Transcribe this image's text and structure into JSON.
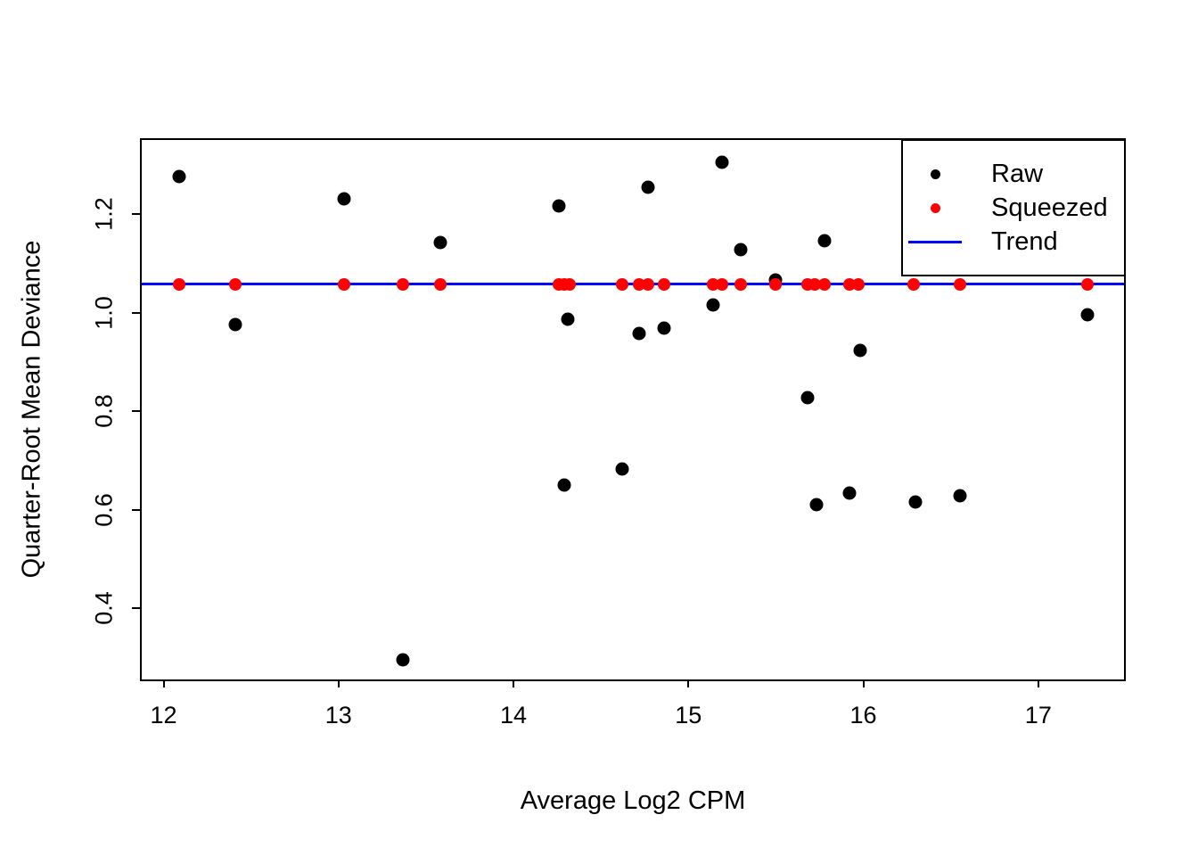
{
  "chart_data": {
    "type": "scatter",
    "title": "",
    "xlabel": "Average Log2 CPM",
    "ylabel": "Quarter-Root Mean Deviance",
    "xlim": [
      11.875,
      17.49
    ],
    "ylim": [
      0.256,
      1.351
    ],
    "x_ticks": [
      12,
      13,
      14,
      15,
      16,
      17
    ],
    "x_tick_labels": [
      "12",
      "13",
      "14",
      "15",
      "16",
      "17"
    ],
    "y_ticks": [
      0.4,
      0.6,
      0.8,
      1.0,
      1.2
    ],
    "y_tick_labels": [
      "0.4",
      "0.6",
      "0.8",
      "1.0",
      "1.2"
    ],
    "grid": false,
    "legend_position": "topright",
    "series": [
      {
        "name": "Raw",
        "type": "points",
        "color": "#000000",
        "marker_size": 15,
        "points": [
          [
            12.09,
            1.277
          ],
          [
            12.41,
            0.977
          ],
          [
            13.03,
            1.232
          ],
          [
            13.37,
            0.296
          ],
          [
            13.58,
            1.142
          ],
          [
            14.26,
            1.217
          ],
          [
            14.29,
            0.65
          ],
          [
            14.31,
            0.988
          ],
          [
            14.62,
            0.683
          ],
          [
            14.72,
            0.958
          ],
          [
            14.77,
            1.255
          ],
          [
            14.86,
            0.969
          ],
          [
            15.14,
            1.017
          ],
          [
            15.19,
            1.305
          ],
          [
            15.3,
            1.128
          ],
          [
            15.5,
            1.066
          ],
          [
            15.68,
            0.828
          ],
          [
            15.73,
            0.61
          ],
          [
            15.78,
            1.146
          ],
          [
            15.92,
            0.634
          ],
          [
            15.98,
            0.923
          ],
          [
            16.3,
            0.616
          ],
          [
            16.55,
            0.629
          ],
          [
            17.28,
            0.997
          ]
        ]
      },
      {
        "name": "Squeezed",
        "type": "points",
        "color": "#ff0000",
        "marker_size": 14,
        "points": [
          [
            12.09,
            1.058
          ],
          [
            12.41,
            1.058
          ],
          [
            13.03,
            1.058
          ],
          [
            13.37,
            1.058
          ],
          [
            13.58,
            1.058
          ],
          [
            14.26,
            1.058
          ],
          [
            14.29,
            1.058
          ],
          [
            14.32,
            1.058
          ],
          [
            14.62,
            1.058
          ],
          [
            14.72,
            1.058
          ],
          [
            14.77,
            1.058
          ],
          [
            14.86,
            1.058
          ],
          [
            15.14,
            1.058
          ],
          [
            15.19,
            1.058
          ],
          [
            15.3,
            1.058
          ],
          [
            15.5,
            1.058
          ],
          [
            15.68,
            1.058
          ],
          [
            15.72,
            1.058
          ],
          [
            15.78,
            1.058
          ],
          [
            15.92,
            1.058
          ],
          [
            15.97,
            1.058
          ],
          [
            16.29,
            1.058
          ],
          [
            16.55,
            1.058
          ],
          [
            17.28,
            1.058
          ]
        ]
      },
      {
        "name": "Trend",
        "type": "hline",
        "color": "#0000ff",
        "y": 1.058
      }
    ],
    "legend": [
      {
        "label": "Raw",
        "marker": "dot",
        "color": "#000000"
      },
      {
        "label": "Squeezed",
        "marker": "dot",
        "color": "#ff0000"
      },
      {
        "label": "Trend",
        "marker": "line",
        "color": "#0000ff"
      }
    ]
  },
  "colors": {
    "background": "#ffffff",
    "frame": "#000000",
    "raw": "#000000",
    "squeezed": "#ff0000",
    "trend": "#0000ff"
  }
}
